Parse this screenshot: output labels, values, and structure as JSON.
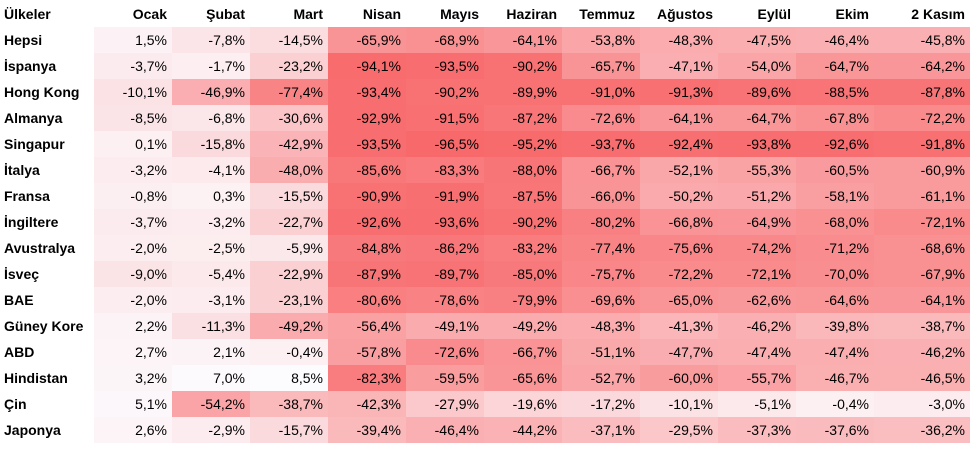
{
  "chart_data": {
    "type": "heatmap",
    "title": "",
    "xlabel": "",
    "ylabel": "",
    "row_header": "Ülkeler",
    "columns": [
      "Ocak",
      "Şubat",
      "Mart",
      "Nisan",
      "Mayıs",
      "Haziran",
      "Temmuz",
      "Ağustos",
      "Eylül",
      "Ekim",
      "2 Kasım"
    ],
    "unit": "%",
    "decimal_separator": ",",
    "color_scale": {
      "low": "#f8696b",
      "high": "#fcfcff",
      "min": -96.5,
      "max": 8.5
    },
    "rows": [
      {
        "label": "Hepsi",
        "values": [
          1.5,
          -7.8,
          -14.5,
          -65.9,
          -68.9,
          -64.1,
          -53.8,
          -48.3,
          -47.5,
          -46.4,
          -45.8
        ]
      },
      {
        "label": "İspanya",
        "values": [
          -3.7,
          -1.7,
          -23.2,
          -94.1,
          -93.5,
          -90.2,
          -65.7,
          -47.1,
          -54.0,
          -64.7,
          -64.2
        ]
      },
      {
        "label": "Hong Kong",
        "values": [
          -10.1,
          -46.9,
          -77.4,
          -93.4,
          -90.2,
          -89.9,
          -91.0,
          -91.3,
          -89.6,
          -88.5,
          -87.8
        ]
      },
      {
        "label": "Almanya",
        "values": [
          -8.5,
          -6.8,
          -30.6,
          -92.9,
          -91.5,
          -87.2,
          -72.6,
          -64.1,
          -64.7,
          -67.8,
          -72.2
        ]
      },
      {
        "label": "Singapur",
        "values": [
          0.1,
          -15.8,
          -42.9,
          -93.5,
          -96.5,
          -95.2,
          -93.7,
          -92.4,
          -93.8,
          -92.6,
          -91.8
        ]
      },
      {
        "label": "İtalya",
        "values": [
          -3.2,
          -4.1,
          -48.0,
          -85.6,
          -83.3,
          -88.0,
          -66.7,
          -52.1,
          -55.3,
          -60.5,
          -60.9
        ]
      },
      {
        "label": "Fransa",
        "values": [
          -0.8,
          0.3,
          -15.5,
          -90.9,
          -91.9,
          -87.5,
          -66.0,
          -50.2,
          -51.2,
          -58.1,
          -61.1
        ]
      },
      {
        "label": "İngiltere",
        "values": [
          -3.7,
          -3.2,
          -22.7,
          -92.6,
          -93.6,
          -90.2,
          -80.2,
          -66.8,
          -64.9,
          -68.0,
          -72.1
        ]
      },
      {
        "label": "Avustralya",
        "values": [
          -2.0,
          -2.5,
          -5.9,
          -84.8,
          -86.2,
          -83.2,
          -77.4,
          -75.6,
          -74.2,
          -71.2,
          -68.6
        ]
      },
      {
        "label": "İsveç",
        "values": [
          -9.0,
          -5.4,
          -22.9,
          -87.9,
          -89.7,
          -85.0,
          -75.7,
          -72.2,
          -72.1,
          -70.0,
          -67.9
        ]
      },
      {
        "label": "BAE",
        "values": [
          -2.0,
          -3.1,
          -23.1,
          -80.6,
          -78.6,
          -79.9,
          -69.6,
          -65.0,
          -62.6,
          -64.6,
          -64.1
        ]
      },
      {
        "label": "Güney Kore",
        "values": [
          2.2,
          -11.3,
          -49.2,
          -56.4,
          -49.1,
          -49.2,
          -48.3,
          -41.3,
          -46.2,
          -39.8,
          -38.7
        ]
      },
      {
        "label": "ABD",
        "values": [
          2.7,
          2.1,
          -0.4,
          -57.8,
          -72.6,
          -66.7,
          -51.1,
          -47.7,
          -47.4,
          -47.4,
          -46.2
        ]
      },
      {
        "label": "Hindistan",
        "values": [
          3.2,
          7.0,
          8.5,
          -82.3,
          -59.5,
          -65.6,
          -52.7,
          -60.0,
          -55.7,
          -46.7,
          -46.5
        ]
      },
      {
        "label": "Çin",
        "values": [
          5.1,
          -54.2,
          -38.7,
          -42.3,
          -27.9,
          -19.6,
          -17.2,
          -10.1,
          -5.1,
          -0.4,
          -3.0
        ]
      },
      {
        "label": "Japonya",
        "values": [
          2.6,
          -2.9,
          -15.7,
          -39.4,
          -46.4,
          -44.2,
          -37.1,
          -29.5,
          -37.3,
          -37.6,
          -36.2
        ]
      }
    ]
  }
}
